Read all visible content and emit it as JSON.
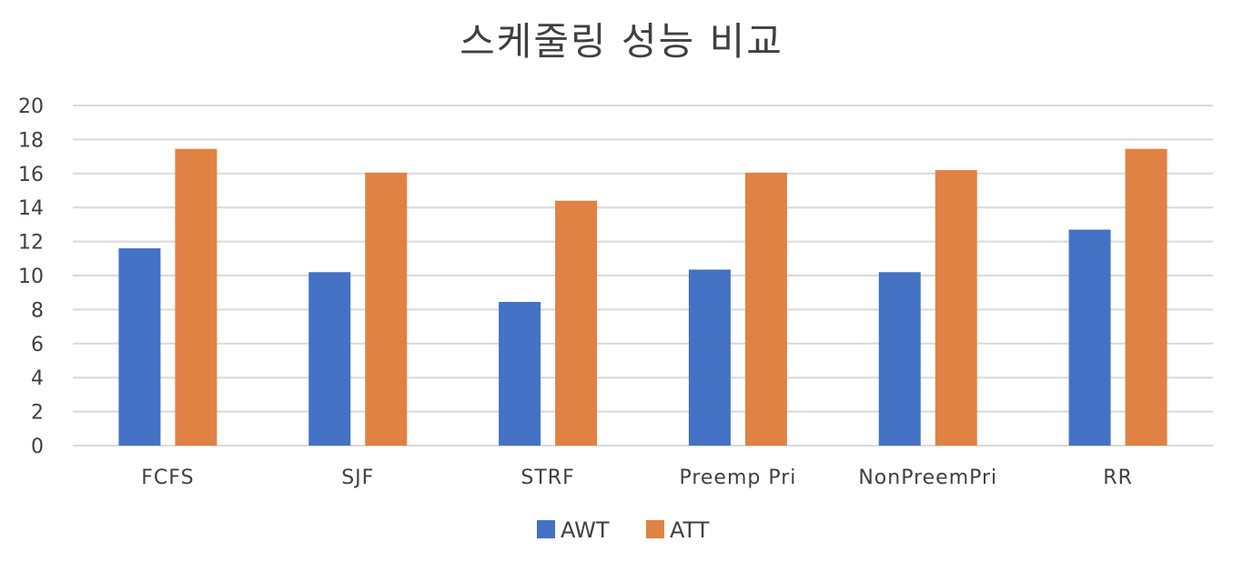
{
  "chart_data": {
    "type": "bar",
    "title": "스케줄링 성능 비교",
    "categories": [
      "FCFS",
      "SJF",
      "STRF",
      "Preemp Pri",
      "NonPreemPri",
      "RR"
    ],
    "series": [
      {
        "name": "AWT",
        "color": "#4472C4",
        "values": [
          11.6,
          10.2,
          8.45,
          10.35,
          10.2,
          12.7
        ]
      },
      {
        "name": "ATT",
        "color": "#E08243",
        "values": [
          17.45,
          16.05,
          14.4,
          16.05,
          16.2,
          17.45
        ]
      }
    ],
    "ylim": [
      0,
      20
    ],
    "yticks": [
      0,
      2,
      4,
      6,
      8,
      10,
      12,
      14,
      16,
      18,
      20
    ],
    "grid": true,
    "gridColor": "#d9d9d9",
    "legend": "bottom"
  }
}
